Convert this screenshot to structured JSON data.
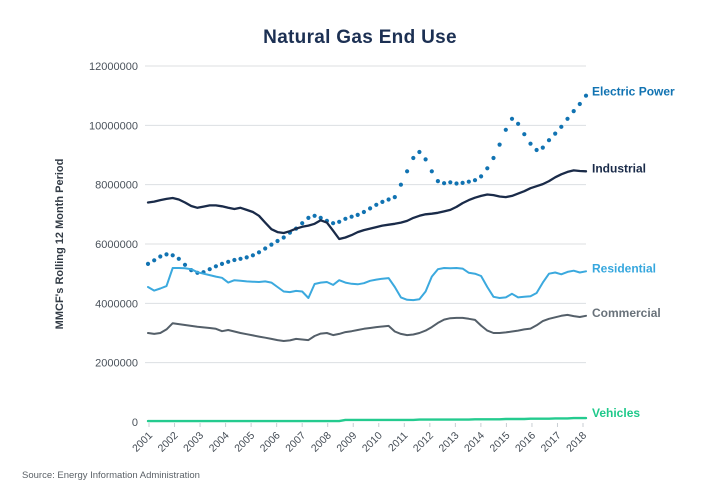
{
  "title": "Natural Gas End Use",
  "source": "Source: Energy Information Administration",
  "y_axis": {
    "title": "MMCF's Rolling 12 Month Period",
    "tick_values": [
      0,
      2000000,
      4000000,
      6000000,
      8000000,
      10000000,
      12000000
    ],
    "tick_labels": [
      "0",
      "2000000",
      "4000000",
      "6000000",
      "8000000",
      "10000000",
      "12000000"
    ]
  },
  "x_axis": {
    "ticks": [
      "2001",
      "2002",
      "2003",
      "2004",
      "2005",
      "2006",
      "2007",
      "2008",
      "2009",
      "2010",
      "2011",
      "2012",
      "2013",
      "2014",
      "2015",
      "2016",
      "2017",
      "2018"
    ]
  },
  "colors": {
    "title": "#1c3053",
    "gridline": "#dcdfe2",
    "axis_tick": "#c9ced3",
    "y_tick_label": "#4a525b",
    "x_tick_label": "#454d56",
    "y_axis_title": "#333c46",
    "source": "#5b6167"
  },
  "chart_data": {
    "type": "line",
    "title": "Natural Gas End Use",
    "ylabel": "MMCF's Rolling 12 Month Period",
    "unit": "MMCF",
    "values_scale": 1000000,
    "ylim": [
      0,
      12000000
    ],
    "x_range": [
      2001,
      2018
    ],
    "grid": "horizontal",
    "legend_position": "right-end-labels",
    "series": [
      {
        "name": "Electric Power",
        "style": "dotted",
        "color": "#1173b2",
        "label_color": "#1173b2",
        "label_dy": -4,
        "values": [
          5.33,
          5.45,
          5.58,
          5.65,
          5.62,
          5.5,
          5.3,
          5.12,
          5.03,
          5.05,
          5.15,
          5.25,
          5.33,
          5.4,
          5.46,
          5.5,
          5.55,
          5.62,
          5.72,
          5.85,
          5.98,
          6.1,
          6.22,
          6.38,
          6.52,
          6.7,
          6.88,
          6.95,
          6.88,
          6.78,
          6.7,
          6.75,
          6.85,
          6.92,
          6.98,
          7.08,
          7.2,
          7.32,
          7.42,
          7.5,
          7.58,
          8.0,
          8.45,
          8.9,
          9.1,
          8.85,
          8.45,
          8.12,
          8.05,
          8.08,
          8.04,
          8.06,
          8.1,
          8.15,
          8.28,
          8.55,
          8.9,
          9.35,
          9.85,
          10.22,
          10.05,
          9.7,
          9.38,
          9.17,
          9.25,
          9.5,
          9.72,
          9.95,
          10.22,
          10.48,
          10.72,
          11.0
        ]
      },
      {
        "name": "Industrial",
        "style": "solid",
        "color": "#1a2b49",
        "label_color": "#1a2b49",
        "label_dy": -3,
        "values": [
          7.4,
          7.43,
          7.48,
          7.52,
          7.55,
          7.5,
          7.4,
          7.28,
          7.22,
          7.26,
          7.3,
          7.3,
          7.27,
          7.22,
          7.18,
          7.22,
          7.15,
          7.08,
          6.95,
          6.72,
          6.5,
          6.4,
          6.37,
          6.43,
          6.52,
          6.58,
          6.62,
          6.68,
          6.8,
          6.72,
          6.45,
          6.17,
          6.22,
          6.3,
          6.4,
          6.47,
          6.52,
          6.57,
          6.62,
          6.65,
          6.68,
          6.72,
          6.78,
          6.88,
          6.95,
          7.0,
          7.02,
          7.05,
          7.1,
          7.15,
          7.25,
          7.38,
          7.48,
          7.56,
          7.62,
          7.67,
          7.65,
          7.6,
          7.58,
          7.62,
          7.7,
          7.78,
          7.88,
          7.95,
          8.02,
          8.12,
          8.25,
          8.35,
          8.43,
          8.48,
          8.46,
          8.45
        ]
      },
      {
        "name": "Residential",
        "style": "solid",
        "color": "#3ba9de",
        "label_color": "#36a7de",
        "label_dy": -3,
        "values": [
          4.55,
          4.43,
          4.5,
          4.58,
          5.19,
          5.19,
          5.18,
          5.15,
          5.05,
          5.0,
          4.95,
          4.9,
          4.86,
          4.7,
          4.78,
          4.76,
          4.74,
          4.73,
          4.72,
          4.74,
          4.7,
          4.55,
          4.4,
          4.38,
          4.42,
          4.4,
          4.18,
          4.65,
          4.7,
          4.72,
          4.62,
          4.78,
          4.7,
          4.66,
          4.64,
          4.68,
          4.76,
          4.8,
          4.83,
          4.85,
          4.55,
          4.2,
          4.12,
          4.11,
          4.14,
          4.4,
          4.9,
          5.15,
          5.19,
          5.18,
          5.19,
          5.17,
          5.03,
          5.0,
          4.92,
          4.55,
          4.22,
          4.18,
          4.2,
          4.32,
          4.2,
          4.22,
          4.24,
          4.35,
          4.7,
          5.0,
          5.04,
          4.98,
          5.06,
          5.1,
          5.04,
          5.08
        ]
      },
      {
        "name": "Commercial",
        "style": "solid",
        "color": "#545f69",
        "label_color": "#69727a",
        "label_dy": -3,
        "values": [
          3.0,
          2.97,
          3.0,
          3.12,
          3.33,
          3.3,
          3.27,
          3.24,
          3.21,
          3.19,
          3.17,
          3.14,
          3.06,
          3.1,
          3.05,
          3.0,
          2.96,
          2.92,
          2.88,
          2.84,
          2.8,
          2.76,
          2.73,
          2.75,
          2.8,
          2.78,
          2.76,
          2.9,
          2.98,
          3.0,
          2.93,
          2.97,
          3.03,
          3.06,
          3.1,
          3.14,
          3.17,
          3.2,
          3.22,
          3.24,
          3.05,
          2.97,
          2.93,
          2.95,
          3.0,
          3.08,
          3.2,
          3.34,
          3.45,
          3.5,
          3.51,
          3.51,
          3.48,
          3.44,
          3.25,
          3.08,
          3.0,
          3.0,
          3.02,
          3.05,
          3.08,
          3.12,
          3.15,
          3.26,
          3.4,
          3.48,
          3.53,
          3.58,
          3.61,
          3.57,
          3.54,
          3.58
        ]
      },
      {
        "name": "Vehicles",
        "style": "solid",
        "color": "#24cb8f",
        "label_color": "#1fc98b",
        "label_dy": -5,
        "values": [
          0.03,
          0.03,
          0.03,
          0.03,
          0.03,
          0.03,
          0.03,
          0.03,
          0.03,
          0.03,
          0.03,
          0.03,
          0.03,
          0.03,
          0.03,
          0.03,
          0.03,
          0.03,
          0.03,
          0.03,
          0.03,
          0.03,
          0.03,
          0.03,
          0.03,
          0.03,
          0.03,
          0.03,
          0.03,
          0.03,
          0.03,
          0.03,
          0.07,
          0.07,
          0.07,
          0.07,
          0.07,
          0.07,
          0.07,
          0.07,
          0.07,
          0.07,
          0.07,
          0.07,
          0.08,
          0.08,
          0.08,
          0.08,
          0.08,
          0.08,
          0.08,
          0.08,
          0.08,
          0.09,
          0.09,
          0.09,
          0.09,
          0.09,
          0.1,
          0.1,
          0.1,
          0.1,
          0.11,
          0.11,
          0.11,
          0.11,
          0.12,
          0.12,
          0.12,
          0.13,
          0.13,
          0.13
        ]
      }
    ]
  }
}
